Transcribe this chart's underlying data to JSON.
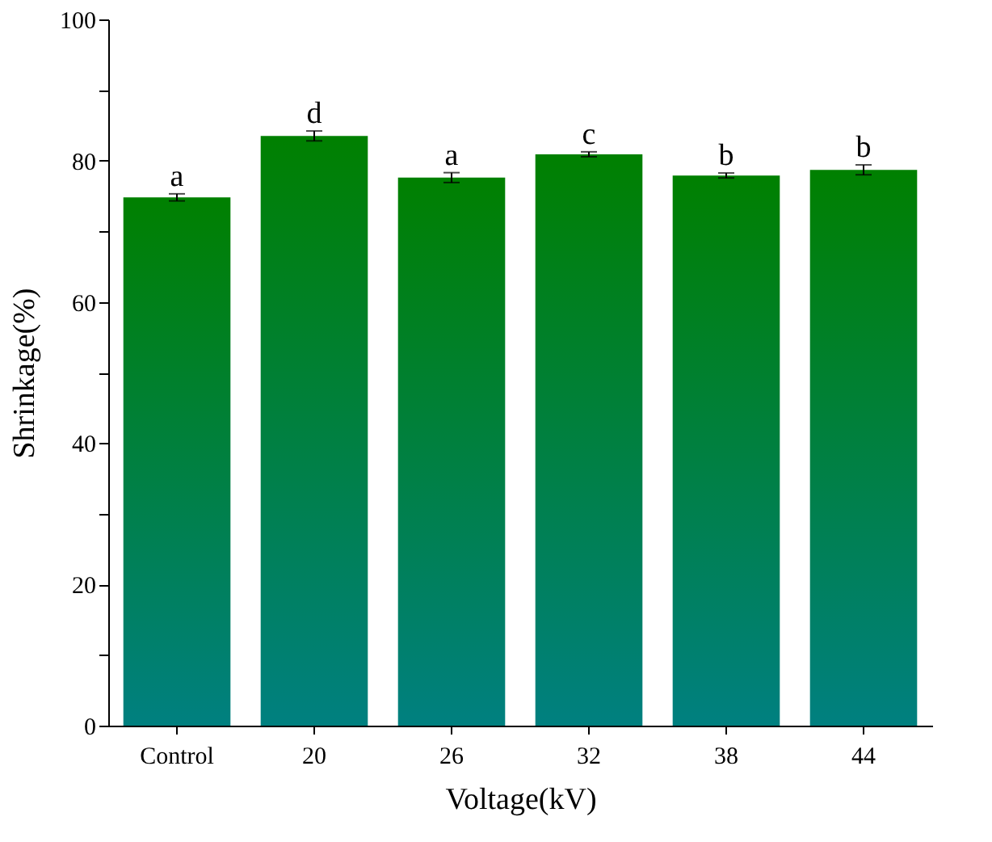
{
  "chart_data": {
    "type": "bar",
    "xlabel": "Voltage(kV)",
    "ylabel": "Shrinkage(%)",
    "categories": [
      "Control",
      "20",
      "26",
      "32",
      "38",
      "44"
    ],
    "series": [
      {
        "color": "#008000",
        "values": [
          74.8,
          83.5,
          77.6,
          80.9,
          77.9,
          78.7
        ],
        "errors": [
          0.5,
          0.7,
          0.7,
          0.35,
          0.35,
          0.7
        ]
      }
    ],
    "ylim": [
      0,
      100
    ],
    "yticks": [
      0,
      {
        "value": 10,
        "label": null
      },
      20,
      {
        "value": 30,
        "label": null
      },
      40,
      {
        "value": 50,
        "label": null
      },
      60,
      {
        "value": 70,
        "label": null
      },
      80,
      {
        "value": 90,
        "label": null
      },
      100
    ],
    "annotations": [
      {
        "text": "a",
        "x": "Control",
        "y": 75.3
      },
      {
        "text": "d",
        "x": "20",
        "y": 84.2
      },
      {
        "text": "a",
        "x": "26",
        "y": 78.3
      },
      {
        "text": "c",
        "x": "32",
        "y": 81.25
      },
      {
        "text": "b",
        "x": "38",
        "y": 78.25
      },
      {
        "text": "b",
        "x": "44",
        "y": 79.4
      }
    ],
    "grid": false
  }
}
